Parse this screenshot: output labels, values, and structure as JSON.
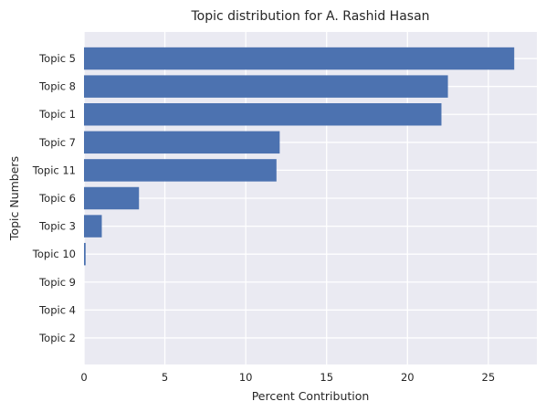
{
  "chart_data": {
    "type": "bar",
    "orientation": "horizontal",
    "title": "Topic distribution for A. Rashid Hasan",
    "xlabel": "Percent Contribution",
    "ylabel": "Topic Numbers",
    "categories": [
      "Topic 5",
      "Topic 8",
      "Topic 1",
      "Topic 7",
      "Topic 11",
      "Topic 6",
      "Topic 3",
      "Topic 10",
      "Topic 9",
      "Topic 4",
      "Topic 2"
    ],
    "values": [
      26.6,
      22.5,
      22.1,
      12.1,
      11.9,
      3.4,
      1.1,
      0.1,
      0,
      0,
      0
    ],
    "xlim": [
      0,
      28
    ],
    "xticks": [
      0,
      5,
      10,
      15,
      20,
      25
    ],
    "grid": true,
    "colors": {
      "bar": "#4c72b0",
      "background": "#eaeaf2",
      "grid": "#ffffff"
    }
  }
}
